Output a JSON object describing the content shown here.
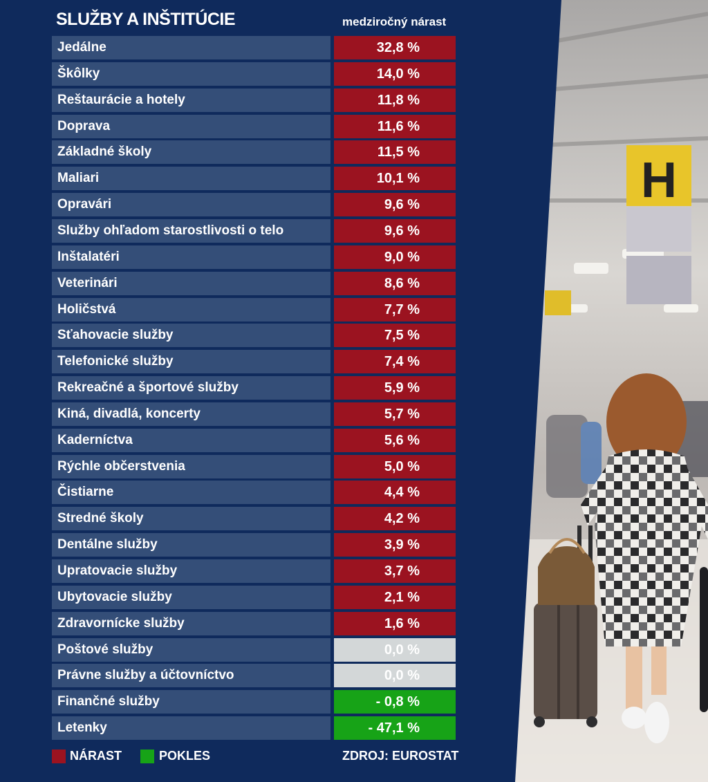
{
  "title": "SLUŽBY A INŠTITÚCIE",
  "column_header": "medziročný nárast",
  "colors": {
    "increase": "#9b1320",
    "neutral": "#d3d7d8",
    "decrease": "#17a317",
    "label_bg": "#344e78",
    "background": "#0f2a5c"
  },
  "chart_data": {
    "type": "table",
    "title": "SLUŽBY A INŠTITÚCIE",
    "value_header": "medziročný nárast",
    "rows": [
      {
        "label": "Jedálne",
        "value": 32.8,
        "text": "32,8 %",
        "status": "increase"
      },
      {
        "label": "Škôlky",
        "value": 14.0,
        "text": "14,0 %",
        "status": "increase"
      },
      {
        "label": "Reštaurácie a hotely",
        "value": 11.8,
        "text": "11,8 %",
        "status": "increase"
      },
      {
        "label": "Doprava",
        "value": 11.6,
        "text": "11,6 %",
        "status": "increase"
      },
      {
        "label": "Základné školy",
        "value": 11.5,
        "text": "11,5 %",
        "status": "increase"
      },
      {
        "label": "Maliari",
        "value": 10.1,
        "text": "10,1 %",
        "status": "increase"
      },
      {
        "label": "Opravári",
        "value": 9.6,
        "text": "9,6 %",
        "status": "increase"
      },
      {
        "label": "Služby ohľadom starostlivosti o telo",
        "value": 9.6,
        "text": "9,6 %",
        "status": "increase"
      },
      {
        "label": "Inštalatéri",
        "value": 9.0,
        "text": "9,0 %",
        "status": "increase"
      },
      {
        "label": "Veterinári",
        "value": 8.6,
        "text": "8,6 %",
        "status": "increase"
      },
      {
        "label": "Holičstvá",
        "value": 7.7,
        "text": "7,7 %",
        "status": "increase"
      },
      {
        "label": "Sťahovacie služby",
        "value": 7.5,
        "text": "7,5 %",
        "status": "increase"
      },
      {
        "label": "Telefonické služby",
        "value": 7.4,
        "text": "7,4 %",
        "status": "increase"
      },
      {
        "label": "Rekreačné a športové služby",
        "value": 5.9,
        "text": "5,9 %",
        "status": "increase"
      },
      {
        "label": "Kiná, divadlá, koncerty",
        "value": 5.7,
        "text": "5,7 %",
        "status": "increase"
      },
      {
        "label": "Kaderníctva",
        "value": 5.6,
        "text": "5,6 %",
        "status": "increase"
      },
      {
        "label": "Rýchle občerstvenia",
        "value": 5.0,
        "text": "5,0 %",
        "status": "increase"
      },
      {
        "label": "Čistiarne",
        "value": 4.4,
        "text": "4,4 %",
        "status": "increase"
      },
      {
        "label": "Stredné školy",
        "value": 4.2,
        "text": "4,2 %",
        "status": "increase"
      },
      {
        "label": "Dentálne služby",
        "value": 3.9,
        "text": "3,9 %",
        "status": "increase"
      },
      {
        "label": "Upratovacie služby",
        "value": 3.7,
        "text": "3,7 %",
        "status": "increase"
      },
      {
        "label": "Ubytovacie služby",
        "value": 2.1,
        "text": "2,1 %",
        "status": "increase"
      },
      {
        "label": "Zdravornícke služby",
        "value": 1.6,
        "text": "1,6 %",
        "status": "increase"
      },
      {
        "label": "Poštové služby",
        "value": 0.0,
        "text": "0,0 %",
        "status": "neutral"
      },
      {
        "label": "Právne služby a účtovníctvo",
        "value": 0.0,
        "text": "0,0 %",
        "status": "neutral"
      },
      {
        "label": "Finančné služby",
        "value": -0.8,
        "text": "- 0,8 %",
        "status": "decrease"
      },
      {
        "label": "Letenky",
        "value": -47.1,
        "text": "- 47,1 %",
        "status": "decrease"
      }
    ]
  },
  "legend": {
    "increase_label": "NÁRAST",
    "decrease_label": "POKLES"
  },
  "source": "ZDROJ: EUROSTAT",
  "photo": {
    "subject": "airport-traveler-photo",
    "sign_letter": "H"
  }
}
